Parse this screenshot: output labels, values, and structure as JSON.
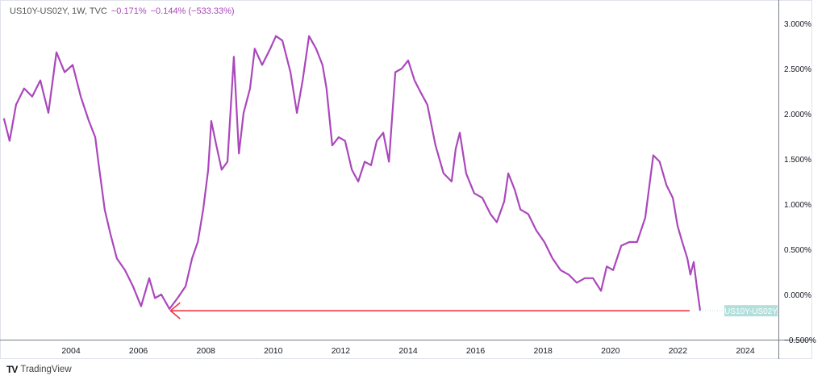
{
  "header": {
    "symbol": "US10Y-US02Y, 1W, TVC",
    "last": "−0.171%",
    "change": "−0.144% (−533.33%)"
  },
  "footer": {
    "brand": "TradingView",
    "logo_icon": "tradingview-logo-icon"
  },
  "chart_data": {
    "type": "line",
    "title": "",
    "xlim": [
      2002.0,
      2025.0
    ],
    "ylim": [
      -0.5,
      3.25
    ],
    "x_ticks": [
      2004,
      2006,
      2008,
      2010,
      2012,
      2014,
      2016,
      2018,
      2020,
      2022,
      2024
    ],
    "x_tick_labels": [
      "2004",
      "2006",
      "2008",
      "2010",
      "2012",
      "2014",
      "2016",
      "2018",
      "2020",
      "2022",
      "2024"
    ],
    "y_ticks": [
      3.0,
      2.5,
      2.0,
      1.5,
      1.0,
      0.5,
      0.0,
      -0.5
    ],
    "y_tick_labels": [
      "3.000%",
      "2.500%",
      "2.000%",
      "1.500%",
      "1.000%",
      "0.500%",
      "0.000%",
      "−0.500%"
    ],
    "grid": false,
    "line_color": "#ab47bc",
    "series": [
      {
        "name": "US10Y-US02Y",
        "points": [
          [
            2002.01,
            1.95
          ],
          [
            2002.18,
            1.7
          ],
          [
            2002.37,
            2.1
          ],
          [
            2002.61,
            2.28
          ],
          [
            2002.85,
            2.19
          ],
          [
            2003.09,
            2.37
          ],
          [
            2003.33,
            2.01
          ],
          [
            2003.57,
            2.68
          ],
          [
            2003.81,
            2.46
          ],
          [
            2004.05,
            2.54
          ],
          [
            2004.29,
            2.19
          ],
          [
            2004.53,
            1.92
          ],
          [
            2004.72,
            1.74
          ],
          [
            2004.81,
            1.47
          ],
          [
            2005.0,
            0.94
          ],
          [
            2005.17,
            0.67
          ],
          [
            2005.36,
            0.4
          ],
          [
            2005.6,
            0.27
          ],
          [
            2005.84,
            0.09
          ],
          [
            2006.08,
            -0.13
          ],
          [
            2006.32,
            0.18
          ],
          [
            2006.49,
            -0.04
          ],
          [
            2006.68,
            0.0
          ],
          [
            2006.92,
            -0.16
          ],
          [
            2007.16,
            -0.04
          ],
          [
            2007.4,
            0.09
          ],
          [
            2007.59,
            0.4
          ],
          [
            2007.76,
            0.58
          ],
          [
            2007.92,
            0.94
          ],
          [
            2008.07,
            1.38
          ],
          [
            2008.16,
            1.92
          ],
          [
            2008.31,
            1.65
          ],
          [
            2008.47,
            1.38
          ],
          [
            2008.64,
            1.47
          ],
          [
            2008.83,
            2.63
          ],
          [
            2008.98,
            1.56
          ],
          [
            2009.12,
            2.01
          ],
          [
            2009.31,
            2.28
          ],
          [
            2009.45,
            2.72
          ],
          [
            2009.67,
            2.54
          ],
          [
            2009.91,
            2.72
          ],
          [
            2010.08,
            2.86
          ],
          [
            2010.27,
            2.81
          ],
          [
            2010.51,
            2.46
          ],
          [
            2010.7,
            2.01
          ],
          [
            2010.87,
            2.37
          ],
          [
            2011.06,
            2.86
          ],
          [
            2011.27,
            2.72
          ],
          [
            2011.46,
            2.54
          ],
          [
            2011.58,
            2.28
          ],
          [
            2011.75,
            1.65
          ],
          [
            2011.94,
            1.74
          ],
          [
            2012.13,
            1.7
          ],
          [
            2012.33,
            1.38
          ],
          [
            2012.52,
            1.25
          ],
          [
            2012.71,
            1.47
          ],
          [
            2012.9,
            1.43
          ],
          [
            2013.07,
            1.7
          ],
          [
            2013.26,
            1.79
          ],
          [
            2013.43,
            1.47
          ],
          [
            2013.62,
            2.46
          ],
          [
            2013.81,
            2.5
          ],
          [
            2014.0,
            2.59
          ],
          [
            2014.19,
            2.37
          ],
          [
            2014.38,
            2.23
          ],
          [
            2014.57,
            2.1
          ],
          [
            2014.81,
            1.65
          ],
          [
            2015.05,
            1.34
          ],
          [
            2015.29,
            1.25
          ],
          [
            2015.41,
            1.61
          ],
          [
            2015.53,
            1.79
          ],
          [
            2015.72,
            1.34
          ],
          [
            2015.96,
            1.12
          ],
          [
            2016.2,
            1.07
          ],
          [
            2016.44,
            0.89
          ],
          [
            2016.63,
            0.8
          ],
          [
            2016.85,
            1.03
          ],
          [
            2016.97,
            1.34
          ],
          [
            2017.16,
            1.16
          ],
          [
            2017.33,
            0.94
          ],
          [
            2017.56,
            0.89
          ],
          [
            2017.8,
            0.71
          ],
          [
            2018.04,
            0.58
          ],
          [
            2018.28,
            0.4
          ],
          [
            2018.52,
            0.27
          ],
          [
            2018.76,
            0.22
          ],
          [
            2019.0,
            0.13
          ],
          [
            2019.24,
            0.18
          ],
          [
            2019.48,
            0.18
          ],
          [
            2019.72,
            0.04
          ],
          [
            2019.89,
            0.31
          ],
          [
            2020.08,
            0.27
          ],
          [
            2020.32,
            0.54
          ],
          [
            2020.56,
            0.58
          ],
          [
            2020.79,
            0.58
          ],
          [
            2021.03,
            0.85
          ],
          [
            2021.27,
            1.54
          ],
          [
            2021.46,
            1.47
          ],
          [
            2021.66,
            1.21
          ],
          [
            2021.85,
            1.07
          ],
          [
            2021.99,
            0.76
          ],
          [
            2022.13,
            0.58
          ],
          [
            2022.28,
            0.4
          ],
          [
            2022.37,
            0.22
          ],
          [
            2022.47,
            0.36
          ],
          [
            2022.56,
            0.09
          ],
          [
            2022.66,
            -0.18
          ]
        ]
      }
    ],
    "price_label": {
      "text": "US10Y-US02Y",
      "value": -0.18,
      "color": "#b2dfdb"
    },
    "annotation": {
      "type": "arrow",
      "color": "#f23645",
      "from": [
        2022.35,
        -0.18
      ],
      "to": [
        2006.95,
        -0.18
      ]
    }
  }
}
